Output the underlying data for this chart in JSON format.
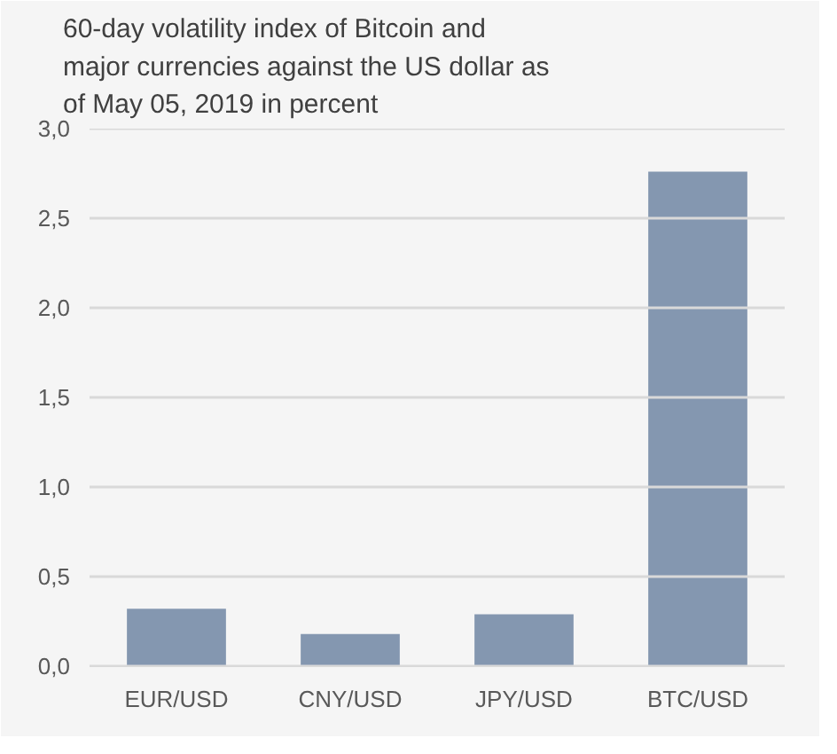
{
  "chart_data": {
    "type": "bar",
    "title": "60-day volatility index of Bitcoin and major currencies against the US dollar as of May 05, 2019 in percent",
    "categories": [
      "EUR/USD",
      "CNY/USD",
      "JPY/USD",
      "BTC/USD"
    ],
    "values": [
      0.32,
      0.18,
      0.29,
      2.76
    ],
    "color": "#8497b0",
    "ylim": [
      0,
      3
    ],
    "yticks": [
      {
        "value": 0,
        "label": "0,0"
      },
      {
        "value": 0.5,
        "label": "0,5"
      },
      {
        "value": 1,
        "label": "1,0"
      },
      {
        "value": 1.5,
        "label": "1,5"
      },
      {
        "value": 2,
        "label": "2,0"
      },
      {
        "value": 2.5,
        "label": "2,5"
      },
      {
        "value": 3,
        "label": "3,0"
      }
    ],
    "grid": "y"
  }
}
